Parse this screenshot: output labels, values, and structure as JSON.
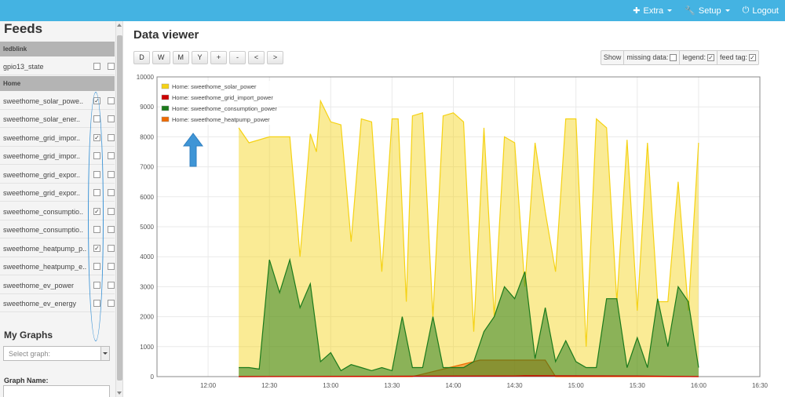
{
  "topnav": {
    "extra": "Extra",
    "setup": "Setup",
    "logout": "Logout"
  },
  "sidebar": {
    "title": "Feeds",
    "groups": [
      {
        "name": "ledblink",
        "feeds": [
          {
            "label": "gpio13_state",
            "checked": false
          }
        ]
      },
      {
        "name": "Home",
        "feeds": [
          {
            "label": "sweethome_solar_powe..",
            "checked": true
          },
          {
            "label": "sweethome_solar_ener..",
            "checked": false
          },
          {
            "label": "sweethome_grid_impor..",
            "checked": true
          },
          {
            "label": "sweethome_grid_impor..",
            "checked": false
          },
          {
            "label": "sweethome_grid_expor..",
            "checked": false
          },
          {
            "label": "sweethome_grid_expor..",
            "checked": false
          },
          {
            "label": "sweethome_consumptio..",
            "checked": true
          },
          {
            "label": "sweethome_consumptio..",
            "checked": false
          },
          {
            "label": "sweethome_heatpump_p..",
            "checked": true
          },
          {
            "label": "sweethome_heatpump_e..",
            "checked": false
          },
          {
            "label": "sweethome_ev_power",
            "checked": false
          },
          {
            "label": "sweethome_ev_energy",
            "checked": false
          }
        ]
      }
    ],
    "mygraphs_title": "My Graphs",
    "select_graph_placeholder": "Select graph:",
    "graph_name_label": "Graph Name:"
  },
  "main": {
    "title": "Data viewer",
    "buttons": [
      "D",
      "W",
      "M",
      "Y",
      "+",
      "-",
      "<",
      ">"
    ],
    "show_bar": {
      "show": "Show",
      "missing_data": "missing data:",
      "missing_data_checked": false,
      "legend": "legend:",
      "legend_checked": true,
      "feed_tag": "feed tag:",
      "feed_tag_checked": true
    }
  },
  "chart_data": {
    "type": "area",
    "ylim": [
      0,
      10000
    ],
    "yticks": [
      0,
      1000,
      2000,
      3000,
      4000,
      5000,
      6000,
      7000,
      8000,
      9000,
      10000
    ],
    "xlim": [
      "11:35",
      "16:30"
    ],
    "xticks": [
      "12:00",
      "12:30",
      "13:00",
      "13:30",
      "14:00",
      "14:30",
      "15:00",
      "15:30",
      "16:00",
      "16:30"
    ],
    "grid": true,
    "legend_position": "top-left",
    "series": [
      {
        "name": "Home: sweethome_solar_power",
        "color": "#f5d214",
        "x": [
          "12:15",
          "12:20",
          "12:30",
          "12:40",
          "12:45",
          "12:50",
          "12:53",
          "12:55",
          "13:00",
          "13:05",
          "13:10",
          "13:15",
          "13:20",
          "13:25",
          "13:30",
          "13:33",
          "13:37",
          "13:40",
          "13:45",
          "13:50",
          "13:55",
          "14:00",
          "14:05",
          "14:10",
          "14:15",
          "14:20",
          "14:25",
          "14:30",
          "14:35",
          "14:40",
          "14:45",
          "14:50",
          "14:55",
          "15:00",
          "15:05",
          "15:10",
          "15:15",
          "15:20",
          "15:25",
          "15:30",
          "15:35",
          "15:40",
          "15:45",
          "15:50",
          "15:55",
          "16:00"
        ],
        "y": [
          8300,
          7800,
          8000,
          8000,
          4000,
          8100,
          7500,
          9200,
          8500,
          8400,
          4500,
          8600,
          8500,
          3500,
          8600,
          8600,
          2500,
          8700,
          8800,
          2000,
          8700,
          8800,
          8500,
          1500,
          8300,
          2000,
          8000,
          7800,
          3000,
          7800,
          5500,
          3500,
          8600,
          8600,
          1000,
          8600,
          8300,
          2500,
          7900,
          2200,
          7800,
          2500,
          2500,
          6500,
          2200,
          7800
        ]
      },
      {
        "name": "Home: sweethome_grid_import_power",
        "color": "#cc0000",
        "x": [
          "12:15",
          "14:30",
          "14:35",
          "15:30",
          "16:00"
        ],
        "y": [
          0,
          20,
          30,
          20,
          0
        ]
      },
      {
        "name": "Home: sweethome_consumption_power",
        "color": "#1b7a1b",
        "x": [
          "12:15",
          "12:20",
          "12:25",
          "12:30",
          "12:35",
          "12:40",
          "12:45",
          "12:50",
          "12:55",
          "13:00",
          "13:05",
          "13:10",
          "13:15",
          "13:20",
          "13:25",
          "13:30",
          "13:35",
          "13:40",
          "13:45",
          "13:50",
          "13:55",
          "14:00",
          "14:05",
          "14:10",
          "14:15",
          "14:20",
          "14:25",
          "14:30",
          "14:35",
          "14:40",
          "14:45",
          "14:50",
          "14:55",
          "15:00",
          "15:05",
          "15:10",
          "15:15",
          "15:20",
          "15:25",
          "15:30",
          "15:35",
          "15:40",
          "15:45",
          "15:50",
          "15:55",
          "16:00"
        ],
        "y": [
          300,
          300,
          250,
          3900,
          2800,
          3900,
          2300,
          3100,
          500,
          800,
          200,
          400,
          300,
          200,
          300,
          200,
          2000,
          300,
          300,
          2000,
          300,
          300,
          300,
          500,
          1500,
          2000,
          3000,
          2600,
          3500,
          600,
          2300,
          500,
          1200,
          500,
          300,
          300,
          2600,
          2600,
          300,
          1300,
          300,
          2600,
          1000,
          3000,
          2500,
          300
        ]
      },
      {
        "name": "Home: sweethome_heatpump_power",
        "color": "#ee6a00",
        "x": [
          "12:15",
          "13:40",
          "14:13",
          "14:30",
          "14:45",
          "14:50",
          "16:00"
        ],
        "y": [
          0,
          0,
          550,
          550,
          550,
          0,
          0
        ]
      }
    ]
  }
}
